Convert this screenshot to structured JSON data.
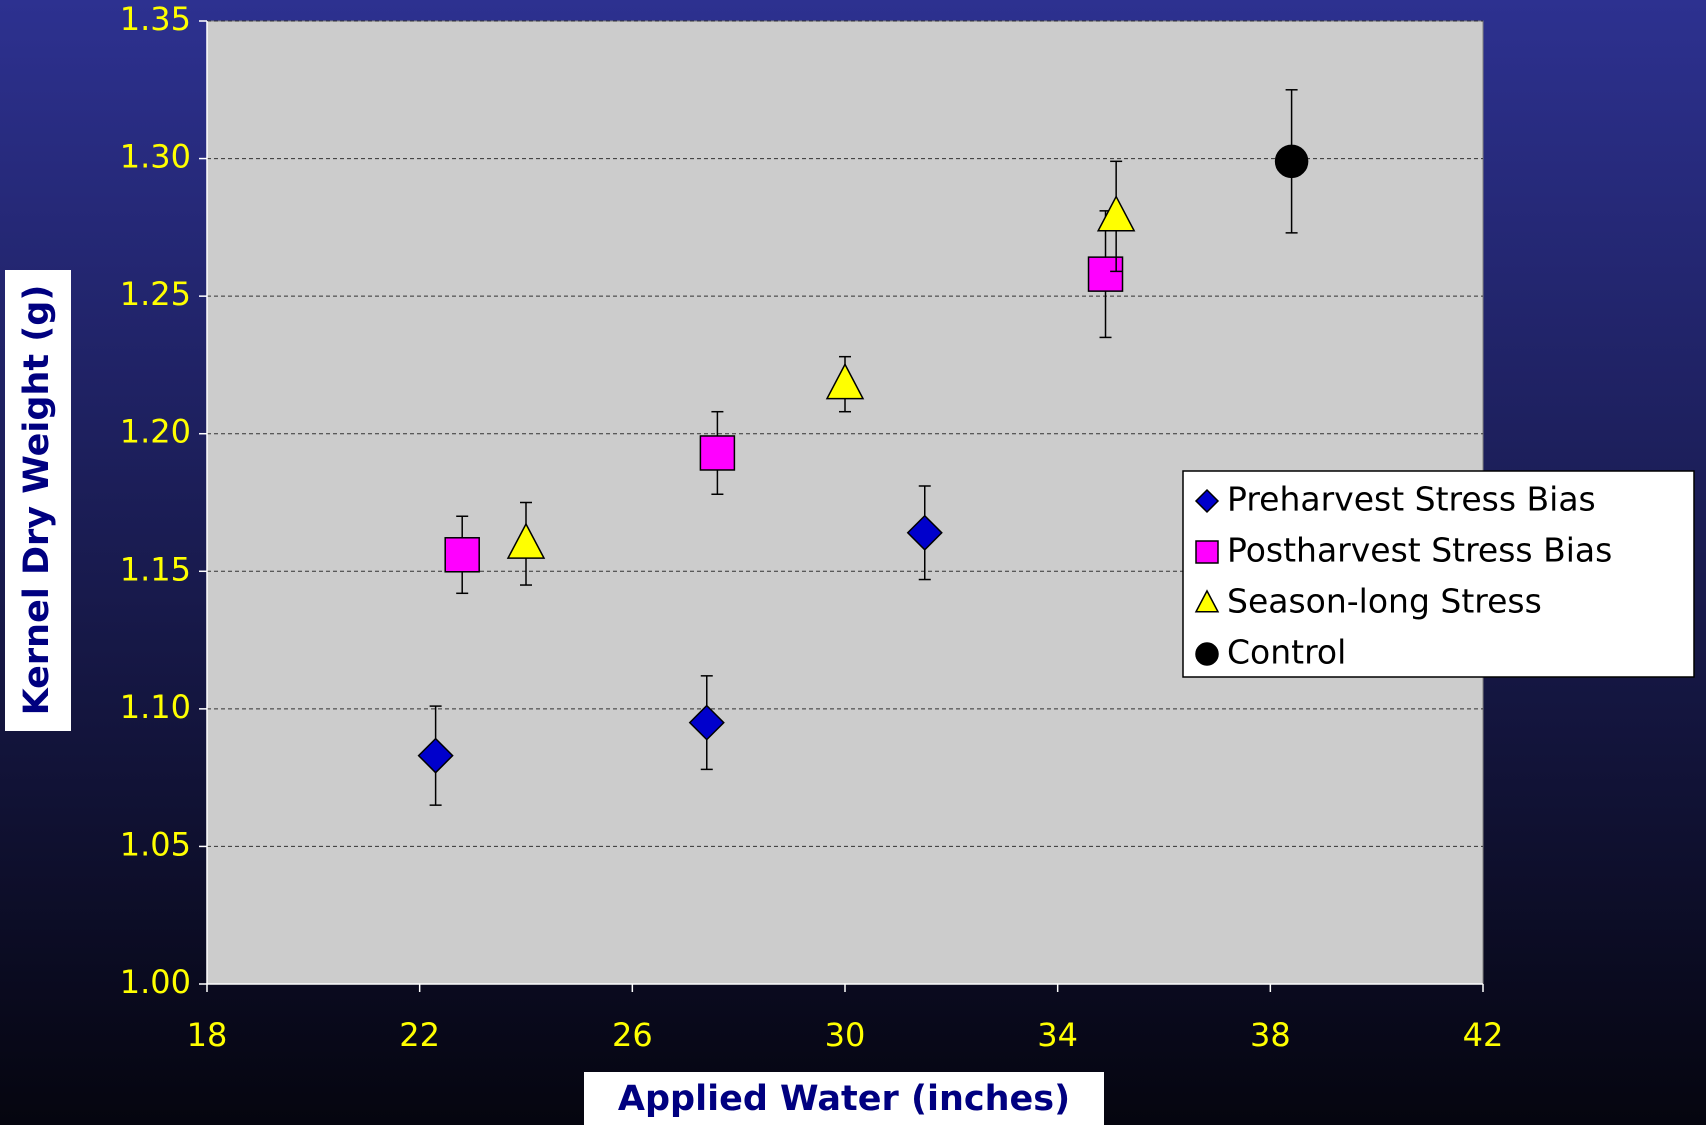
{
  "chart_data": {
    "type": "scatter",
    "xlabel": "Applied Water (inches)",
    "ylabel": "Kernel Dry Weight (g)",
    "xlim": [
      18,
      42
    ],
    "xticks": [
      18,
      22,
      26,
      30,
      34,
      38,
      42
    ],
    "ylim": [
      1.0,
      1.35
    ],
    "yticks": [
      {
        "value": 1.0,
        "label": "1.00"
      },
      1.05,
      {
        "value": 1.1,
        "label": "1.10"
      },
      1.15,
      {
        "value": 1.2,
        "label": "1.20"
      },
      1.25,
      {
        "value": 1.3,
        "label": "1.30"
      },
      1.35
    ],
    "grid": true,
    "legend": "right",
    "series": [
      {
        "name": "Preharvest Stress Bias",
        "color": "#0000cc",
        "marker": "diamond",
        "x": [
          22.3,
          27.4,
          31.5
        ],
        "values": [
          1.083,
          1.095,
          1.164
        ],
        "errors": [
          0.018,
          0.017,
          0.017
        ]
      },
      {
        "name": "Postharvest Stress Bias",
        "color": "#ff00ff",
        "marker": "square",
        "x": [
          22.8,
          27.6,
          34.9
        ],
        "values": [
          1.156,
          1.193,
          1.258
        ],
        "errors": [
          0.014,
          0.015,
          0.023
        ]
      },
      {
        "name": "Season-long Stress",
        "color": "#ffff00",
        "marker": "triangle",
        "x": [
          24.0,
          30.0,
          35.1
        ],
        "values": [
          1.16,
          1.218,
          1.279
        ],
        "errors": [
          0.015,
          0.01,
          0.02
        ]
      },
      {
        "name": "Control",
        "color": "#000000",
        "marker": "circle",
        "x": [
          38.4
        ],
        "values": [
          1.299
        ],
        "errors": [
          0.026
        ]
      }
    ]
  }
}
